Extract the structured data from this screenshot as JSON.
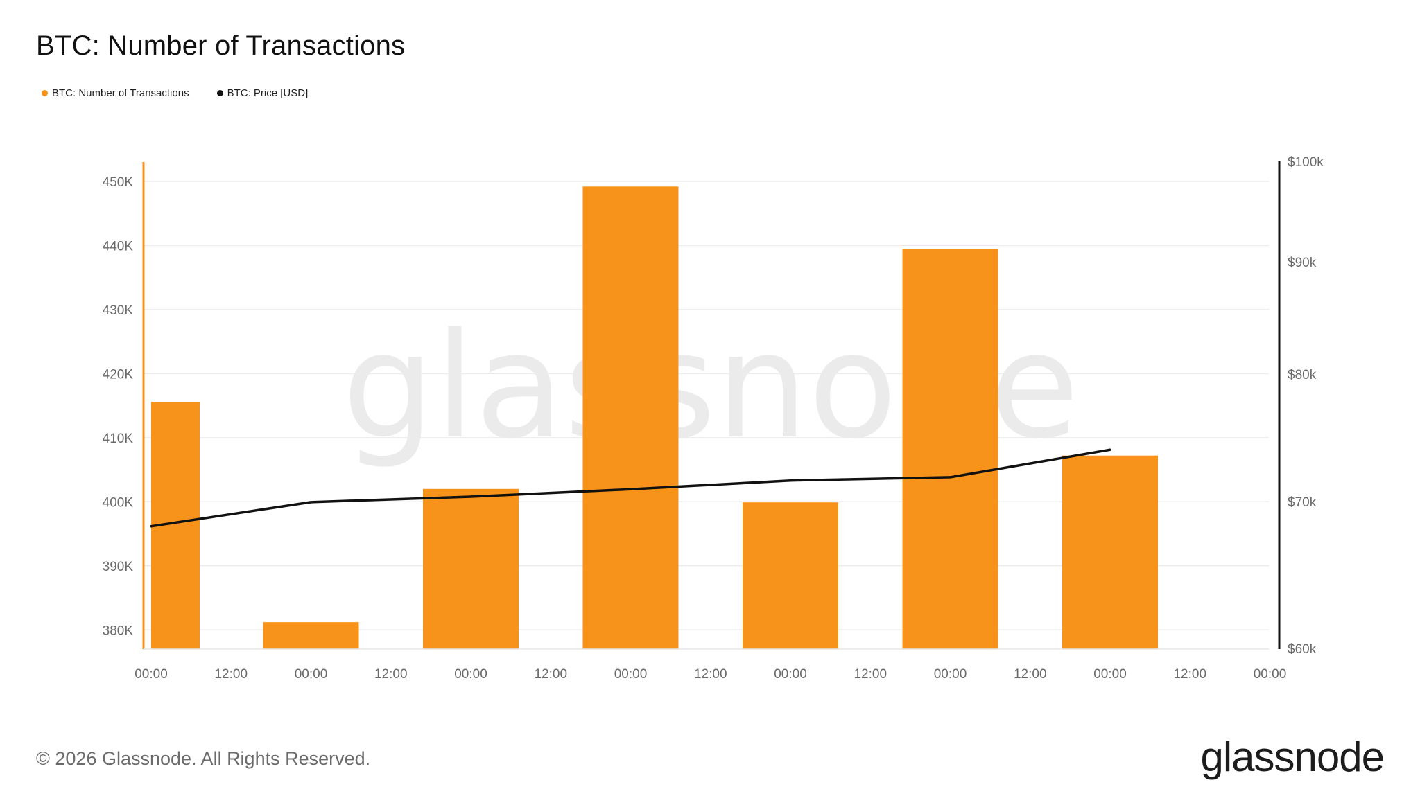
{
  "title": "BTC: Number of Transactions",
  "legend": [
    {
      "label": "BTC: Number of Transactions",
      "color": "#f7931a"
    },
    {
      "label": "BTC: Price [USD]",
      "color": "#111111"
    }
  ],
  "watermark": "glassnode",
  "footer": {
    "copyright": "© 2026 Glassnode. All Rights Reserved.",
    "logo": "glassnode"
  },
  "chart_data": {
    "type": "bar",
    "title": "BTC: Number of Transactions",
    "x_ticks": [
      "00:00",
      "12:00",
      "00:00",
      "12:00",
      "00:00",
      "12:00",
      "00:00",
      "12:00",
      "00:00",
      "12:00",
      "00:00",
      "12:00",
      "00:00",
      "12:00",
      "00:00"
    ],
    "y_left": {
      "ticks": [
        "380K",
        "390K",
        "400K",
        "410K",
        "420K",
        "430K",
        "440K",
        "450K"
      ],
      "tick_values": [
        380000,
        390000,
        400000,
        410000,
        420000,
        430000,
        440000,
        450000
      ],
      "range": [
        377000,
        452800
      ]
    },
    "y_right": {
      "ticks": [
        "$60k",
        "$70k",
        "$80k",
        "$90k",
        "$100k"
      ],
      "tick_values": [
        60000,
        70000,
        80000,
        90000,
        100000
      ],
      "scale": "log"
    },
    "series": [
      {
        "name": "BTC: Number of Transactions",
        "type": "bar",
        "color": "#f7931a",
        "x": [
          0.15,
          1,
          2,
          3,
          4,
          5,
          6
        ],
        "values": [
          415600,
          381200,
          402000,
          449200,
          399900,
          439500,
          407200
        ]
      },
      {
        "name": "BTC: Price [USD]",
        "type": "line",
        "color": "#111111",
        "x": [
          0,
          1,
          2,
          3,
          4,
          5,
          6
        ],
        "values": [
          68200,
          69950,
          70350,
          70900,
          71550,
          71800,
          73900
        ]
      }
    ]
  }
}
